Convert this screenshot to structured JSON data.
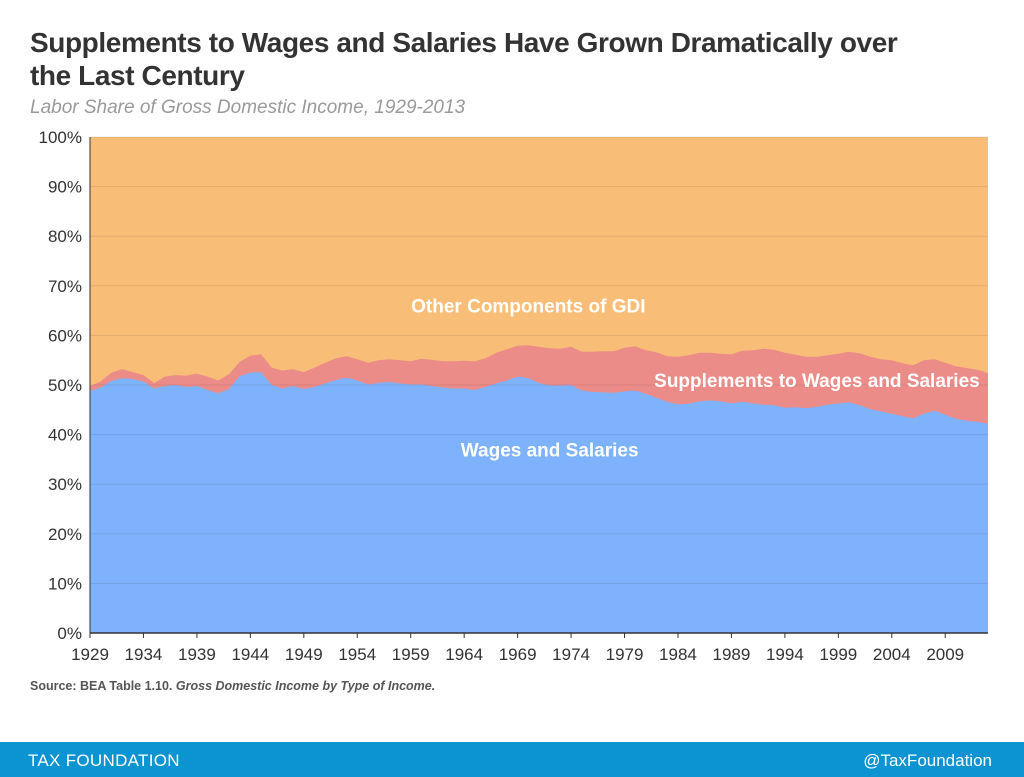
{
  "header": {
    "title": "Supplements to Wages and Salaries Have Grown Dramatically over the Last Century",
    "subtitle": "Labor Share of Gross Domestic Income, 1929-2013"
  },
  "chart_data": {
    "type": "area",
    "stacked": true,
    "x": [
      1929,
      1930,
      1931,
      1932,
      1933,
      1934,
      1935,
      1936,
      1937,
      1938,
      1939,
      1940,
      1941,
      1942,
      1943,
      1944,
      1945,
      1946,
      1947,
      1948,
      1949,
      1950,
      1951,
      1952,
      1953,
      1954,
      1955,
      1956,
      1957,
      1958,
      1959,
      1960,
      1961,
      1962,
      1963,
      1964,
      1965,
      1966,
      1967,
      1968,
      1969,
      1970,
      1971,
      1972,
      1973,
      1974,
      1975,
      1976,
      1977,
      1978,
      1979,
      1980,
      1981,
      1982,
      1983,
      1984,
      1985,
      1986,
      1987,
      1988,
      1989,
      1990,
      1991,
      1992,
      1993,
      1994,
      1995,
      1996,
      1997,
      1998,
      1999,
      2000,
      2001,
      2002,
      2003,
      2004,
      2005,
      2006,
      2007,
      2008,
      2009,
      2010,
      2011,
      2012,
      2013
    ],
    "series": [
      {
        "name": "Wages and Salaries",
        "color": "#7fb2fc",
        "values": [
          48.8,
          49.5,
          50.8,
          51.4,
          51.2,
          50.7,
          49.3,
          49.8,
          50.0,
          49.6,
          49.8,
          49.0,
          48.3,
          49.2,
          51.8,
          52.5,
          52.6,
          50.0,
          49.3,
          49.8,
          49.2,
          49.6,
          50.3,
          51.0,
          51.5,
          50.9,
          50.1,
          50.4,
          50.6,
          50.3,
          50.1,
          50.1,
          49.8,
          49.5,
          49.3,
          49.3,
          49.0,
          49.6,
          50.3,
          50.9,
          51.7,
          51.4,
          50.4,
          49.9,
          49.9,
          50.0,
          48.9,
          48.6,
          48.5,
          48.4,
          48.7,
          48.9,
          48.2,
          47.4,
          46.6,
          46.1,
          46.2,
          46.7,
          46.9,
          46.7,
          46.3,
          46.6,
          46.3,
          46.0,
          45.9,
          45.4,
          45.5,
          45.3,
          45.6,
          46.0,
          46.3,
          46.5,
          45.9,
          45.1,
          44.7,
          44.2,
          43.7,
          43.3,
          44.2,
          44.8,
          44.0,
          43.2,
          42.8,
          42.6,
          42.2
        ]
      },
      {
        "name": "Supplements to Wages and Salaries",
        "color": "#ec8c89",
        "values": [
          1.0,
          1.2,
          1.7,
          1.8,
          1.4,
          1.3,
          1.1,
          1.9,
          2.0,
          2.3,
          2.5,
          2.7,
          2.6,
          3.0,
          2.9,
          3.4,
          3.6,
          3.5,
          3.6,
          3.4,
          3.4,
          3.9,
          4.2,
          4.4,
          4.3,
          4.3,
          4.4,
          4.6,
          4.6,
          4.7,
          4.7,
          5.2,
          5.3,
          5.3,
          5.5,
          5.6,
          5.8,
          5.8,
          6.2,
          6.3,
          6.2,
          6.6,
          7.3,
          7.5,
          7.4,
          7.7,
          7.8,
          8.1,
          8.3,
          8.4,
          8.8,
          8.9,
          8.8,
          9.2,
          9.2,
          9.6,
          9.8,
          9.8,
          9.6,
          9.6,
          9.9,
          10.3,
          10.7,
          11.3,
          11.2,
          11.1,
          10.6,
          10.4,
          10.1,
          10.0,
          10.0,
          10.2,
          10.5,
          10.6,
          10.5,
          10.8,
          10.7,
          10.7,
          10.8,
          10.4,
          10.5,
          10.6,
          10.6,
          10.5,
          10.2
        ]
      },
      {
        "name": "Other Components of GDI",
        "color": "#f8be77",
        "fill_to": 100
      }
    ],
    "labels": {
      "other": "Other Components of GDI",
      "supplements": "Supplements to Wages and Salaries",
      "wages": "Wages and Salaries"
    },
    "yticks": [
      "0%",
      "10%",
      "20%",
      "30%",
      "40%",
      "50%",
      "60%",
      "70%",
      "80%",
      "90%",
      "100%"
    ],
    "ytick_values": [
      0,
      10,
      20,
      30,
      40,
      50,
      60,
      70,
      80,
      90,
      100
    ],
    "xticks": [
      "1929",
      "1934",
      "1939",
      "1944",
      "1949",
      "1954",
      "1959",
      "1964",
      "1969",
      "1974",
      "1979",
      "1984",
      "1989",
      "1994",
      "1999",
      "2004",
      "2009"
    ],
    "xtick_values": [
      1929,
      1934,
      1939,
      1944,
      1949,
      1954,
      1959,
      1964,
      1969,
      1974,
      1979,
      1984,
      1989,
      1994,
      1999,
      2004,
      2009
    ],
    "xlim": [
      1929,
      2013
    ],
    "ylim": [
      0,
      100
    ],
    "grid": true
  },
  "source": {
    "prefix": "Source: BEA Table 1.10. ",
    "title": "Gross Domestic Income by Type of Income."
  },
  "footer": {
    "left": "TAX FOUNDATION",
    "right": "@TaxFoundation"
  }
}
